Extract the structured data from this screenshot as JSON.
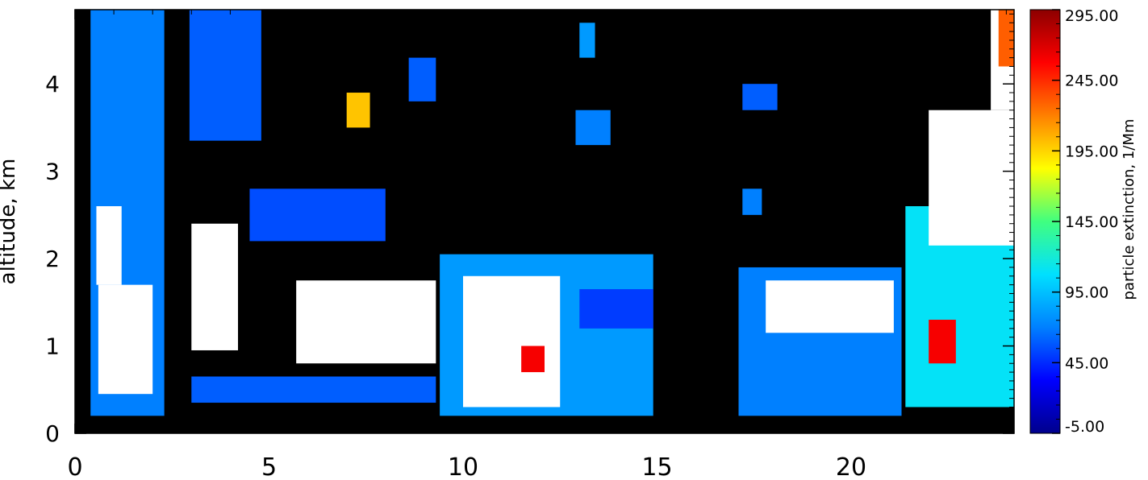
{
  "chart_data": {
    "type": "heatmap",
    "title": "",
    "xlabel": "",
    "ylabel": "altitude, km",
    "xlim": [
      0,
      24.2
    ],
    "ylim": [
      0,
      4.85
    ],
    "x_ticks": [
      0,
      5,
      10,
      15,
      20
    ],
    "x_tick_labels": [
      "0",
      "5",
      "10",
      "15",
      "20"
    ],
    "y_ticks": [
      0,
      1,
      2,
      3,
      4
    ],
    "y_tick_labels": [
      "0",
      "1",
      "2",
      "3",
      "4"
    ],
    "background_color": "#000000",
    "saturated_color": "#ffffff",
    "colorbar": {
      "label": "particle extinction, 1/Mm",
      "range": [
        -5,
        295
      ],
      "ticks": [
        -5,
        45,
        95,
        145,
        195,
        245,
        295
      ],
      "tick_labels": [
        "-5.00",
        "45.00",
        "95.00",
        "145.00",
        "195.00",
        "245.00",
        "295.00"
      ],
      "colors": [
        "#00008c",
        "#0000ff",
        "#0080ff",
        "#00e0ff",
        "#40ff80",
        "#ffff00",
        "#ff8000",
        "#ff0000",
        "#8c0000"
      ]
    },
    "cells": [
      {
        "x": [
          0.4,
          2.3
        ],
        "y": [
          0.2,
          4.85
        ],
        "v": 70
      },
      {
        "x": [
          0.6,
          2.0
        ],
        "y": [
          0.45,
          1.7
        ],
        "v": 310
      },
      {
        "x": [
          0.55,
          1.2
        ],
        "y": [
          1.7,
          2.6
        ],
        "v": 310
      },
      {
        "x": [
          3.0,
          4.2
        ],
        "y": [
          0.95,
          2.4
        ],
        "v": 310
      },
      {
        "x": [
          2.95,
          4.8
        ],
        "y": [
          3.35,
          4.85
        ],
        "v": 60
      },
      {
        "x": [
          3.0,
          9.3
        ],
        "y": [
          0.35,
          0.65
        ],
        "v": 60
      },
      {
        "x": [
          5.7,
          9.3
        ],
        "y": [
          0.8,
          1.75
        ],
        "v": 310
      },
      {
        "x": [
          4.5,
          8.0
        ],
        "y": [
          2.2,
          2.8
        ],
        "v": 55
      },
      {
        "x": [
          8.6,
          9.3
        ],
        "y": [
          3.8,
          4.3
        ],
        "v": 60
      },
      {
        "x": [
          7.0,
          7.6
        ],
        "y": [
          3.5,
          3.9
        ],
        "v": 200
      },
      {
        "x": [
          9.4,
          14.9
        ],
        "y": [
          0.2,
          2.05
        ],
        "v": 80
      },
      {
        "x": [
          10.0,
          12.5
        ],
        "y": [
          0.3,
          1.8
        ],
        "v": 310
      },
      {
        "x": [
          11.5,
          12.1
        ],
        "y": [
          0.7,
          1.0
        ],
        "v": 260
      },
      {
        "x": [
          13.0,
          14.9
        ],
        "y": [
          1.2,
          1.65
        ],
        "v": 50
      },
      {
        "x": [
          12.9,
          13.8
        ],
        "y": [
          3.3,
          3.7
        ],
        "v": 70
      },
      {
        "x": [
          13.0,
          13.4
        ],
        "y": [
          4.3,
          4.7
        ],
        "v": 80
      },
      {
        "x": [
          17.1,
          21.3
        ],
        "y": [
          0.2,
          1.9
        ],
        "v": 70
      },
      {
        "x": [
          17.8,
          21.1
        ],
        "y": [
          1.15,
          1.75
        ],
        "v": 310
      },
      {
        "x": [
          17.2,
          17.7
        ],
        "y": [
          2.5,
          2.8
        ],
        "v": 70
      },
      {
        "x": [
          17.2,
          18.1
        ],
        "y": [
          3.7,
          4.0
        ],
        "v": 60
      },
      {
        "x": [
          21.4,
          24.2
        ],
        "y": [
          0.3,
          2.6
        ],
        "v": 110
      },
      {
        "x": [
          22.0,
          22.7
        ],
        "y": [
          0.8,
          1.3
        ],
        "v": 260
      },
      {
        "x": [
          22.0,
          24.2
        ],
        "y": [
          2.15,
          3.7
        ],
        "v": 310
      },
      {
        "x": [
          23.6,
          24.2
        ],
        "y": [
          3.7,
          4.85
        ],
        "v": 310
      },
      {
        "x": [
          23.8,
          24.2
        ],
        "y": [
          4.2,
          4.85
        ],
        "v": 230
      }
    ]
  }
}
